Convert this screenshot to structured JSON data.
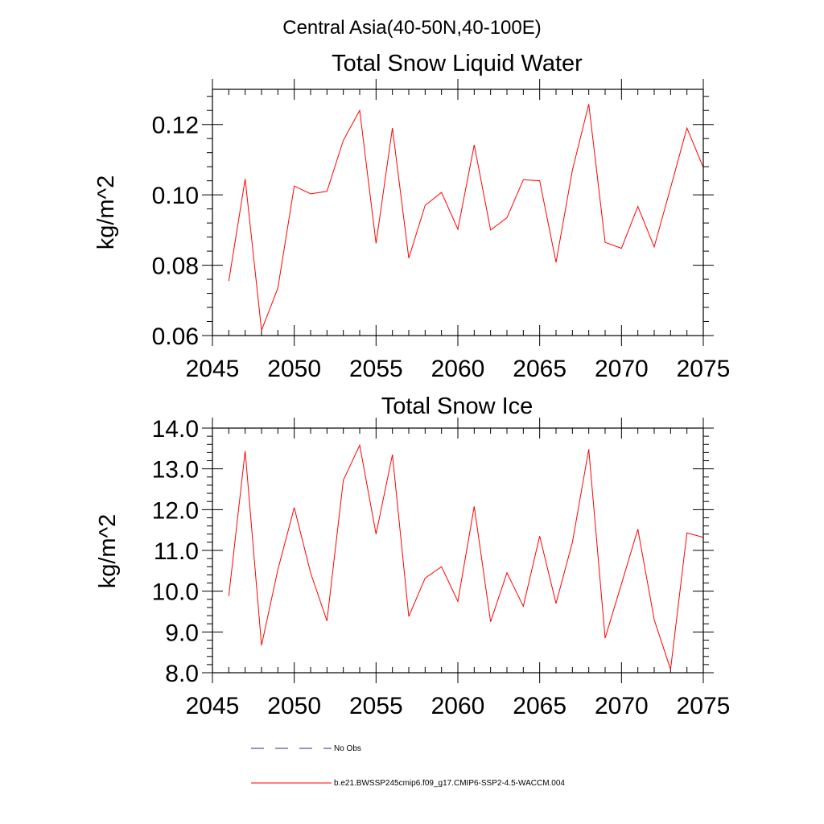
{
  "figure": {
    "main_title": "Central Asia(40-50N,40-100E)"
  },
  "chart_data": [
    {
      "type": "line",
      "title": "Total Snow Liquid Water",
      "xlabel": "",
      "ylabel": "kg/m^2",
      "xlim": [
        2045,
        2075
      ],
      "ylim": [
        0.06,
        0.13
      ],
      "xticks": [
        2045,
        2050,
        2055,
        2060,
        2065,
        2070,
        2075
      ],
      "xtick_labels": [
        "2045",
        "2050",
        "2055",
        "2060",
        "2065",
        "2070",
        "2075"
      ],
      "yticks": [
        0.06,
        0.08,
        0.1,
        0.12
      ],
      "ytick_labels": [
        "0.06",
        "0.08",
        "0.10",
        "0.12"
      ],
      "x": [
        2046,
        2047,
        2048,
        2049,
        2050,
        2051,
        2052,
        2053,
        2054,
        2055,
        2056,
        2057,
        2058,
        2059,
        2060,
        2061,
        2062,
        2063,
        2064,
        2065,
        2066,
        2067,
        2068,
        2069,
        2070,
        2071,
        2072,
        2073,
        2074,
        2075
      ],
      "series": [
        {
          "name": "b.e21.BWSSP245cmip6.f09_g17.CMIP6-SSP2-4.5-WACCM.004",
          "color": "#ff0000",
          "values": [
            0.0755,
            0.1045,
            0.0615,
            0.0735,
            0.1025,
            0.1003,
            0.101,
            0.1155,
            0.124,
            0.0862,
            0.119,
            0.082,
            0.097,
            0.1007,
            0.0902,
            0.1142,
            0.09,
            0.0935,
            0.1043,
            0.104,
            0.0808,
            0.107,
            0.1258,
            0.0865,
            0.0848,
            0.0967,
            0.0852,
            0.102,
            0.119,
            0.1078
          ]
        }
      ]
    },
    {
      "type": "line",
      "title": "Total Snow Ice",
      "xlabel": "",
      "ylabel": "kg/m^2",
      "xlim": [
        2045,
        2075
      ],
      "ylim": [
        8.0,
        14.0
      ],
      "xticks": [
        2045,
        2050,
        2055,
        2060,
        2065,
        2070,
        2075
      ],
      "xtick_labels": [
        "2045",
        "2050",
        "2055",
        "2060",
        "2065",
        "2070",
        "2075"
      ],
      "yticks": [
        8.0,
        9.0,
        10.0,
        11.0,
        12.0,
        13.0,
        14.0
      ],
      "ytick_labels": [
        "8.0",
        "9.0",
        "10.0",
        "11.0",
        "12.0",
        "13.0",
        "14.0"
      ],
      "x": [
        2046,
        2047,
        2048,
        2049,
        2050,
        2051,
        2052,
        2053,
        2054,
        2055,
        2056,
        2057,
        2058,
        2059,
        2060,
        2061,
        2062,
        2063,
        2064,
        2065,
        2066,
        2067,
        2068,
        2069,
        2070,
        2071,
        2072,
        2073,
        2074,
        2075
      ],
      "series": [
        {
          "name": "b.e21.BWSSP245cmip6.f09_g17.CMIP6-SSP2-4.5-WACCM.004",
          "color": "#ff0000",
          "values": [
            9.88,
            13.44,
            8.67,
            10.53,
            12.05,
            10.45,
            9.27,
            12.72,
            13.58,
            11.4,
            13.35,
            9.38,
            10.32,
            10.6,
            9.75,
            12.08,
            9.25,
            10.45,
            9.63,
            11.35,
            9.7,
            11.2,
            13.48,
            8.85,
            10.18,
            11.52,
            9.3,
            8.08,
            11.43,
            11.32
          ]
        }
      ]
    }
  ],
  "legend": {
    "entries": [
      {
        "label": "No Obs",
        "style": "dashed",
        "color": "#2b2b8a"
      },
      {
        "label": "b.e21.BWSSP245cmip6.f09_g17.CMIP6-SSP2-4.5-WACCM.004",
        "style": "solid",
        "color": "#ff0000"
      }
    ]
  }
}
